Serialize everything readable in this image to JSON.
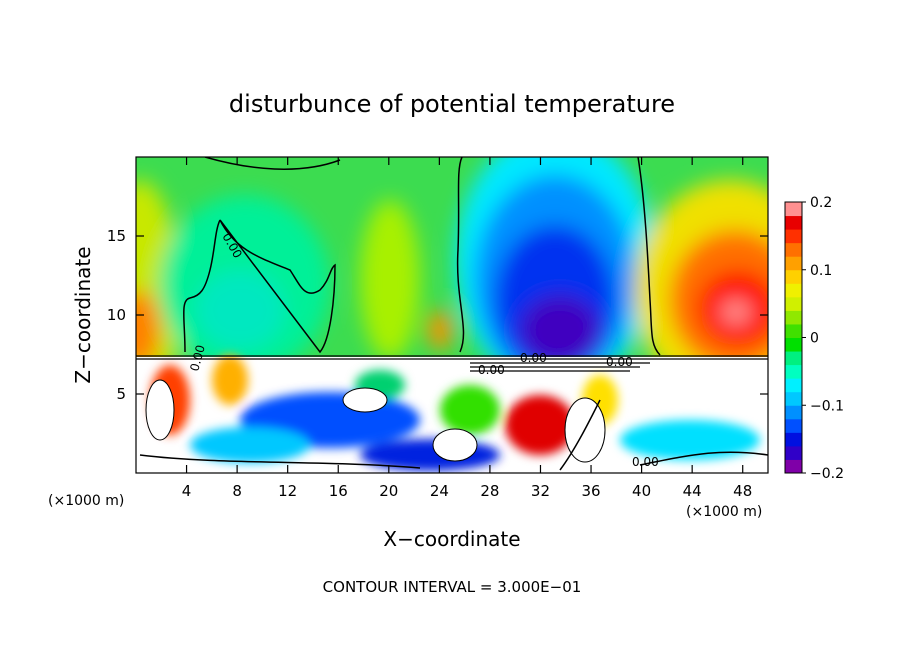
{
  "chart_data": {
    "type": "heatmap",
    "title": "disturbunce of potential temperature",
    "xlabel": "X−coordinate",
    "ylabel": "Z−coordinate",
    "x_unit": "(×1000 m)",
    "x_unit_right": "(×1000 m)",
    "xlim": [
      0,
      50
    ],
    "ylim": [
      0,
      20
    ],
    "x_ticks": [
      4,
      8,
      12,
      16,
      20,
      24,
      28,
      32,
      36,
      40,
      44,
      48
    ],
    "y_ticks": [
      5,
      10,
      15
    ],
    "colorbar": {
      "range": [
        -0.2,
        0.2
      ],
      "tick_values": [
        0.2,
        0.1,
        0,
        -0.1,
        -0.2
      ],
      "tick_labels": [
        "0.2",
        "0.1",
        "0",
        "−0.1",
        "−0.2"
      ],
      "colors": [
        "#7f00a8",
        "#3000c8",
        "#0010e0",
        "#0050ff",
        "#0090ff",
        "#00c8ff",
        "#00f0ff",
        "#00ffc0",
        "#00f080",
        "#00e000",
        "#40e000",
        "#90e800",
        "#d0f000",
        "#f0f000",
        "#ffd000",
        "#ffa000",
        "#ff7000",
        "#ff3000",
        "#e80000",
        "#ff9090"
      ]
    },
    "contour_labels": [
      "0.00",
      "0.00",
      "0.00",
      "0.00",
      "0.00",
      "0.00"
    ],
    "footer": "CONTOUR INTERVAL = 3.000E−01",
    "grid": false
  }
}
